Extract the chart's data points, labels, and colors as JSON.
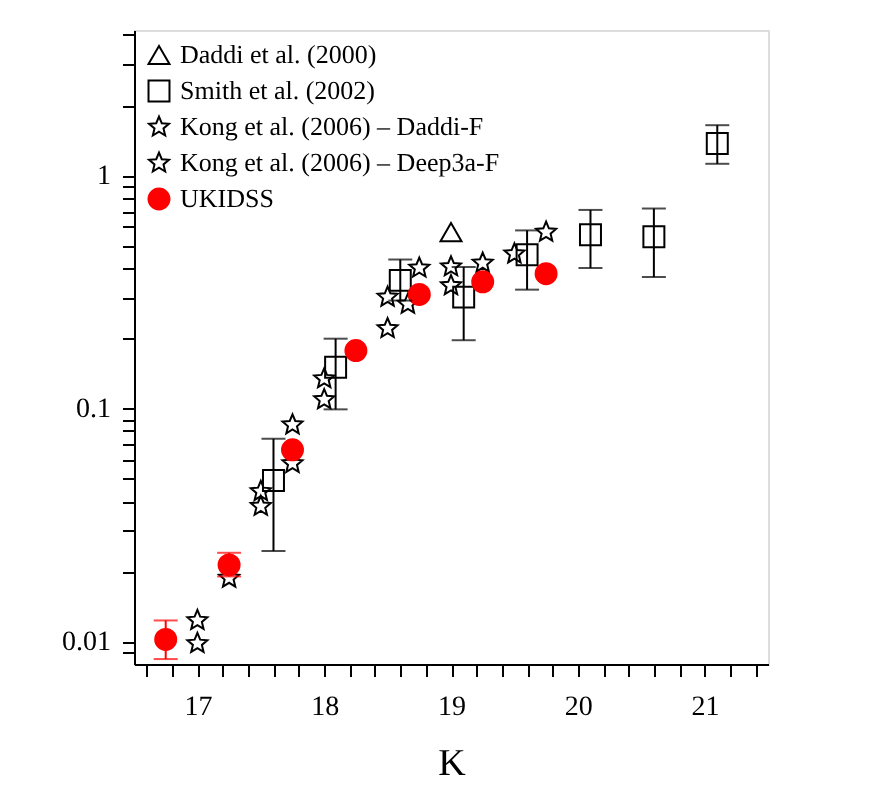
{
  "chart_data": {
    "type": "scatter",
    "xlabel": "K",
    "log": "y",
    "grid": false,
    "legend": "top left",
    "xlim": [
      16.5,
      21.5
    ],
    "ylim": [
      0.008,
      4.2
    ],
    "xticks": [
      {
        "value": 16.6,
        "label": null
      },
      {
        "value": 16.8,
        "label": null
      },
      17,
      {
        "value": 17.2,
        "label": null
      },
      {
        "value": 17.4,
        "label": null
      },
      {
        "value": 17.6,
        "label": null
      },
      {
        "value": 17.8,
        "label": null
      },
      18,
      {
        "value": 18.2,
        "label": null
      },
      {
        "value": 18.4,
        "label": null
      },
      {
        "value": 18.6,
        "label": null
      },
      {
        "value": 18.8,
        "label": null
      },
      19,
      {
        "value": 19.2,
        "label": null
      },
      {
        "value": 19.4,
        "label": null
      },
      {
        "value": 19.6,
        "label": null
      },
      {
        "value": 19.8,
        "label": null
      },
      20,
      {
        "value": 20.2,
        "label": null
      },
      {
        "value": 20.4,
        "label": null
      },
      {
        "value": 20.6,
        "label": null
      },
      {
        "value": 20.8,
        "label": null
      },
      21,
      {
        "value": 21.2,
        "label": null
      },
      {
        "value": 21.4,
        "label": null
      }
    ],
    "yticks": [
      {
        "value": 0.009,
        "label": null
      },
      0.01,
      {
        "value": 0.02,
        "label": null
      },
      {
        "value": 0.03,
        "label": null
      },
      {
        "value": 0.04,
        "label": null
      },
      {
        "value": 0.05,
        "label": null
      },
      {
        "value": 0.06,
        "label": null
      },
      {
        "value": 0.07,
        "label": null
      },
      {
        "value": 0.08,
        "label": null
      },
      {
        "value": 0.09,
        "label": null
      },
      0.1,
      {
        "value": 0.2,
        "label": null
      },
      {
        "value": 0.3,
        "label": null
      },
      {
        "value": 0.4,
        "label": null
      },
      {
        "value": 0.5,
        "label": null
      },
      {
        "value": 0.6,
        "label": null
      },
      {
        "value": 0.7,
        "label": null
      },
      {
        "value": 0.8,
        "label": null
      },
      {
        "value": 0.9,
        "label": null
      },
      1,
      {
        "value": 2,
        "label": null
      },
      {
        "value": 3,
        "label": null
      },
      {
        "value": 4,
        "label": null
      }
    ],
    "series": [
      {
        "name": "Daddi et al. (2000)",
        "color": "#000000",
        "marker": "triangle",
        "x": [
          19.0
        ],
        "values": [
          0.57
        ]
      },
      {
        "name": "Smith et al. (2002)",
        "color": "#000000",
        "marker": "square",
        "x": [
          17.6,
          18.09,
          18.6,
          19.1,
          19.6,
          20.1,
          20.6,
          21.1
        ],
        "values": [
          0.049,
          0.15,
          0.354,
          0.3,
          0.456,
          0.556,
          0.545,
          1.37
        ],
        "errors": [
          [
            0.0244,
            0.074
          ],
          [
            0.099,
            0.199
          ],
          [
            0.29,
            0.435
          ],
          [
            0.196,
            0.404
          ],
          [
            0.323,
            0.58
          ],
          [
            0.4,
            0.71
          ],
          [
            0.366,
            0.72
          ],
          [
            1.12,
            1.64
          ]
        ]
      },
      {
        "name": "Kong et al. (2006) – Daddi-F",
        "color": "#000000",
        "marker": "star",
        "x": [
          17.0,
          17.25,
          17.5,
          17.75,
          18.0,
          18.25,
          18.5,
          18.75,
          19.0,
          19.25
        ],
        "values": [
          0.0123,
          0.0187,
          0.044,
          0.085,
          0.134,
          null,
          0.3,
          0.4,
          0.405,
          0.42
        ]
      },
      {
        "name": "Kong et al. (2006) – Deep3a-F",
        "color": "#000000",
        "marker": "star",
        "x": [
          17.0,
          17.25,
          17.5,
          17.75,
          18.0,
          18.25,
          18.5,
          18.66,
          19.0,
          19.5,
          19.75
        ],
        "values": [
          0.0098,
          null,
          0.038,
          0.058,
          0.109,
          null,
          0.22,
          0.28,
          0.336,
          0.46,
          0.57
        ]
      },
      {
        "name": "UKIDSS",
        "color": "#ff0000",
        "marker": "circle",
        "x": [
          16.75,
          17.25,
          17.75,
          18.25,
          18.75,
          19.25,
          19.75
        ],
        "values": [
          0.0102,
          0.0213,
          0.0664,
          0.177,
          0.308,
          0.349,
          0.378
        ],
        "errors": [
          [
            0.0084,
            0.0123
          ],
          [
            0.019,
            0.024
          ],
          null,
          null,
          null,
          null,
          null
        ]
      }
    ]
  }
}
